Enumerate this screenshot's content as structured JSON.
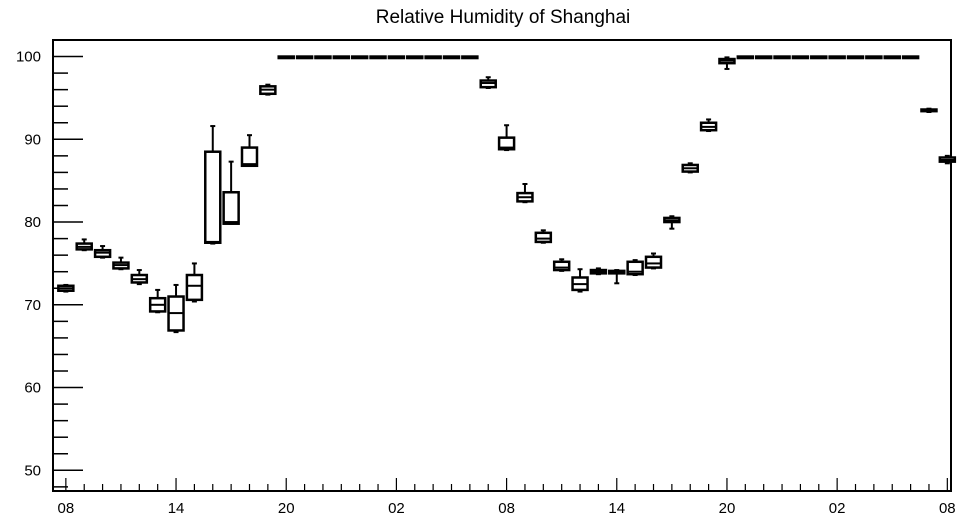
{
  "chart_data": {
    "type": "box",
    "title": "Relative Humidity of Shanghai",
    "xlabel": "",
    "ylabel": "",
    "ylim": [
      47.5,
      102
    ],
    "y_ticks": [
      50,
      60,
      70,
      80,
      90,
      100
    ],
    "x_range": [
      -0.7,
      48.2
    ],
    "x_tick_positions": [
      0,
      6,
      12,
      18,
      24,
      30,
      36,
      42,
      48
    ],
    "x_tick_labels": [
      "08",
      "14",
      "20",
      "02",
      "08",
      "14",
      "20",
      "02",
      "08"
    ],
    "grid": false,
    "boxes": [
      {
        "x": 0,
        "whislo": 71.6,
        "q1": 71.7,
        "med": 72.0,
        "q3": 72.3,
        "whishi": 72.4
      },
      {
        "x": 1,
        "whislo": 76.6,
        "q1": 76.7,
        "med": 77.0,
        "q3": 77.4,
        "whishi": 77.9
      },
      {
        "x": 2,
        "whislo": 75.7,
        "q1": 75.8,
        "med": 76.3,
        "q3": 76.6,
        "whishi": 77.1
      },
      {
        "x": 3,
        "whislo": 74.3,
        "q1": 74.4,
        "med": 74.8,
        "q3": 75.1,
        "whishi": 75.7
      },
      {
        "x": 4,
        "whislo": 72.5,
        "q1": 72.7,
        "med": 73.1,
        "q3": 73.6,
        "whishi": 74.2
      },
      {
        "x": 5,
        "whislo": 69.1,
        "q1": 69.2,
        "med": 70.0,
        "q3": 70.8,
        "whishi": 71.8
      },
      {
        "x": 6,
        "whislo": 66.7,
        "q1": 66.9,
        "med": 69.0,
        "q3": 71.0,
        "whishi": 72.4
      },
      {
        "x": 7,
        "whislo": 70.4,
        "q1": 70.6,
        "med": 72.3,
        "q3": 73.6,
        "whishi": 75.0
      },
      {
        "x": 8,
        "whislo": 77.4,
        "q1": 77.5,
        "med": 77.6,
        "q3": 88.5,
        "whishi": 91.6
      },
      {
        "x": 9,
        "whislo": 79.8,
        "q1": 79.8,
        "med": 80.0,
        "q3": 83.6,
        "whishi": 87.3
      },
      {
        "x": 10,
        "whislo": 86.8,
        "q1": 86.8,
        "med": 87.0,
        "q3": 89.0,
        "whishi": 90.5
      },
      {
        "x": 11,
        "whislo": 95.4,
        "q1": 95.5,
        "med": 96.0,
        "q3": 96.4,
        "whishi": 96.6
      },
      {
        "x": 12,
        "whislo": 100,
        "q1": 100,
        "med": 100,
        "q3": 100,
        "whishi": 100
      },
      {
        "x": 13,
        "whislo": 100,
        "q1": 100,
        "med": 100,
        "q3": 100,
        "whishi": 100
      },
      {
        "x": 14,
        "whislo": 100,
        "q1": 100,
        "med": 100,
        "q3": 100,
        "whishi": 100
      },
      {
        "x": 15,
        "whislo": 100,
        "q1": 100,
        "med": 100,
        "q3": 100,
        "whishi": 100
      },
      {
        "x": 16,
        "whislo": 100,
        "q1": 100,
        "med": 100,
        "q3": 100,
        "whishi": 100
      },
      {
        "x": 17,
        "whislo": 100,
        "q1": 100,
        "med": 100,
        "q3": 100,
        "whishi": 100
      },
      {
        "x": 18,
        "whislo": 100,
        "q1": 100,
        "med": 100,
        "q3": 100,
        "whishi": 100
      },
      {
        "x": 19,
        "whislo": 100,
        "q1": 100,
        "med": 100,
        "q3": 100,
        "whishi": 100
      },
      {
        "x": 20,
        "whislo": 100,
        "q1": 100,
        "med": 100,
        "q3": 100,
        "whishi": 100
      },
      {
        "x": 21,
        "whislo": 100,
        "q1": 100,
        "med": 100,
        "q3": 100,
        "whishi": 100
      },
      {
        "x": 22,
        "whislo": 100,
        "q1": 100,
        "med": 100,
        "q3": 100,
        "whishi": 100
      },
      {
        "x": 23,
        "whislo": 96.2,
        "q1": 96.3,
        "med": 96.8,
        "q3": 97.1,
        "whishi": 97.5
      },
      {
        "x": 24,
        "whislo": 88.7,
        "q1": 88.8,
        "med": 89.0,
        "q3": 90.2,
        "whishi": 91.7
      },
      {
        "x": 25,
        "whislo": 82.4,
        "q1": 82.5,
        "med": 83.0,
        "q3": 83.5,
        "whishi": 84.6
      },
      {
        "x": 26,
        "whislo": 77.5,
        "q1": 77.6,
        "med": 78.0,
        "q3": 78.7,
        "whishi": 79.0
      },
      {
        "x": 27,
        "whislo": 74.1,
        "q1": 74.2,
        "med": 74.5,
        "q3": 75.2,
        "whishi": 75.5
      },
      {
        "x": 28,
        "whislo": 71.6,
        "q1": 71.8,
        "med": 72.5,
        "q3": 73.3,
        "whishi": 74.3
      },
      {
        "x": 29,
        "whislo": 73.7,
        "q1": 73.8,
        "med": 74.0,
        "q3": 74.2,
        "whishi": 74.4
      },
      {
        "x": 30,
        "whislo": 72.6,
        "q1": 73.8,
        "med": 74.0,
        "q3": 74.1,
        "whishi": 74.2
      },
      {
        "x": 31,
        "whislo": 73.6,
        "q1": 73.7,
        "med": 74.0,
        "q3": 75.2,
        "whishi": 75.4
      },
      {
        "x": 32,
        "whislo": 74.4,
        "q1": 74.5,
        "med": 75.0,
        "q3": 75.8,
        "whishi": 76.2
      },
      {
        "x": 33,
        "whislo": 79.2,
        "q1": 80.0,
        "med": 80.2,
        "q3": 80.5,
        "whishi": 80.7
      },
      {
        "x": 34,
        "whislo": 86.0,
        "q1": 86.1,
        "med": 86.5,
        "q3": 86.9,
        "whishi": 87.1
      },
      {
        "x": 35,
        "whislo": 91.0,
        "q1": 91.1,
        "med": 91.5,
        "q3": 92.0,
        "whishi": 92.4
      },
      {
        "x": 36,
        "whislo": 98.5,
        "q1": 99.2,
        "med": 99.5,
        "q3": 99.7,
        "whishi": 99.9
      },
      {
        "x": 37,
        "whislo": 100,
        "q1": 100,
        "med": 100,
        "q3": 100,
        "whishi": 100
      },
      {
        "x": 38,
        "whislo": 100,
        "q1": 100,
        "med": 100,
        "q3": 100,
        "whishi": 100
      },
      {
        "x": 39,
        "whislo": 100,
        "q1": 100,
        "med": 100,
        "q3": 100,
        "whishi": 100
      },
      {
        "x": 40,
        "whislo": 100,
        "q1": 100,
        "med": 100,
        "q3": 100,
        "whishi": 100
      },
      {
        "x": 41,
        "whislo": 100,
        "q1": 100,
        "med": 100,
        "q3": 100,
        "whishi": 100
      },
      {
        "x": 42,
        "whislo": 100,
        "q1": 100,
        "med": 100,
        "q3": 100,
        "whishi": 100
      },
      {
        "x": 43,
        "whislo": 100,
        "q1": 100,
        "med": 100,
        "q3": 100,
        "whishi": 100
      },
      {
        "x": 44,
        "whislo": 100,
        "q1": 100,
        "med": 100,
        "q3": 100,
        "whishi": 100
      },
      {
        "x": 45,
        "whislo": 100,
        "q1": 100,
        "med": 100,
        "q3": 100,
        "whishi": 100
      },
      {
        "x": 46,
        "whislo": 100,
        "q1": 100,
        "med": 100,
        "q3": 100,
        "whishi": 100
      },
      {
        "x": 47,
        "whislo": 93.3,
        "q1": 93.4,
        "med": 93.5,
        "q3": 93.6,
        "whishi": 93.7
      },
      {
        "x": 48,
        "whislo": 87.1,
        "q1": 87.3,
        "med": 87.5,
        "q3": 87.8,
        "whishi": 88.0
      }
    ]
  }
}
